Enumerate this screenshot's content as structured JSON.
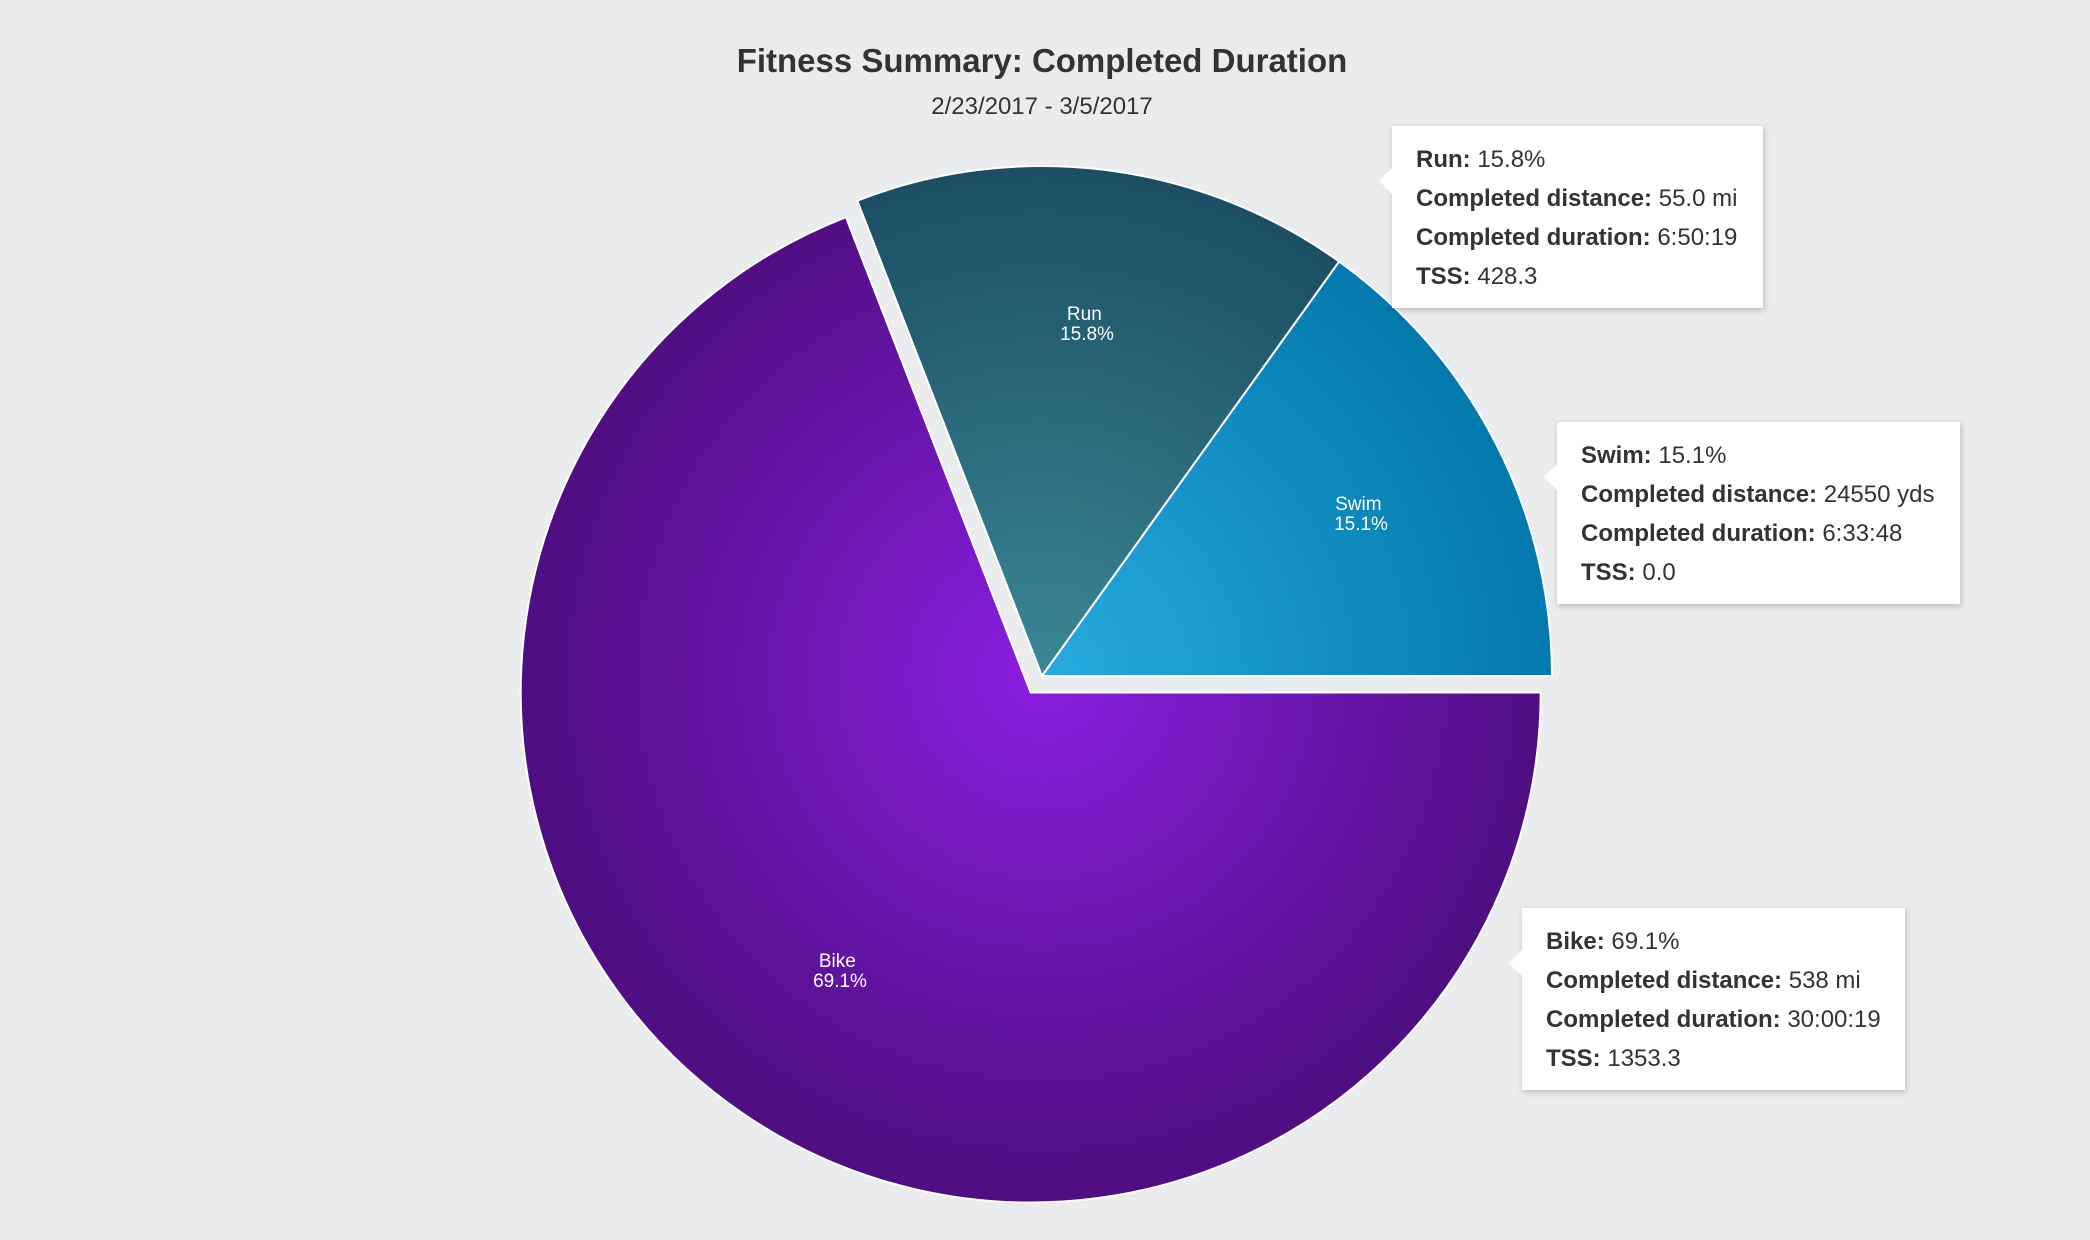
{
  "chart_data": {
    "type": "pie",
    "title": "Fitness Summary: Completed Duration",
    "subtitle": "2/23/2017 - 3/5/2017",
    "slices": [
      {
        "name": "Run",
        "value": 15.8,
        "label": "15.8%",
        "color": "#2a6474"
      },
      {
        "name": "Swim",
        "value": 15.1,
        "label": "15.1%",
        "color": "#138fc4"
      },
      {
        "name": "Bike",
        "value": 69.1,
        "label": "69.1%",
        "color": "#6c18ae"
      }
    ]
  },
  "tooltips": {
    "run": {
      "name_label": "Run:",
      "pct": "15.8%",
      "distance_label": "Completed distance:",
      "distance": "55.0 mi",
      "duration_label": "Completed duration:",
      "duration": "6:50:19",
      "tss_label": "TSS:",
      "tss": "428.3"
    },
    "swim": {
      "name_label": "Swim:",
      "pct": "15.1%",
      "distance_label": "Completed distance:",
      "distance": "24550 yds",
      "duration_label": "Completed duration:",
      "duration": "6:33:48",
      "tss_label": "TSS:",
      "tss": "0.0"
    },
    "bike": {
      "name_label": "Bike:",
      "pct": "69.1%",
      "distance_label": "Completed distance:",
      "distance": "538 mi",
      "duration_label": "Completed duration:",
      "duration": "30:00:19",
      "tss_label": "TSS:",
      "tss": "1353.3"
    }
  }
}
